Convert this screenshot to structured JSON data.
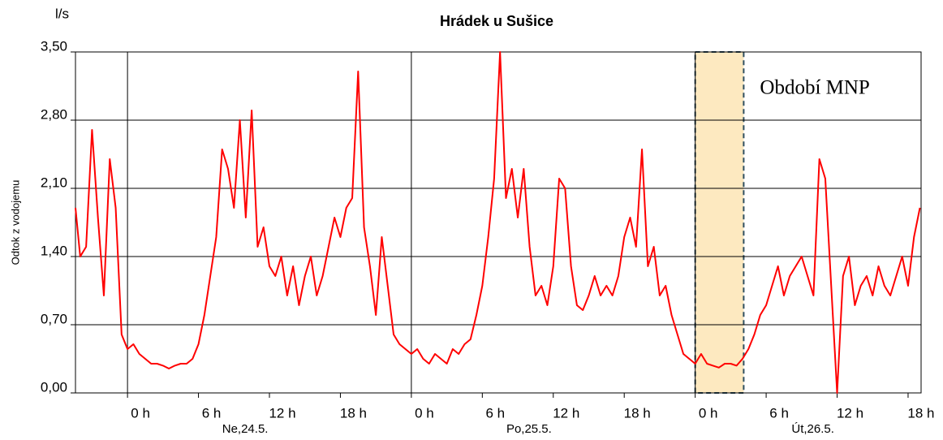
{
  "chart_data": {
    "type": "line",
    "title": "Hrádek u Sušice",
    "y_unit": "l/s",
    "y_label": "Odtok z vodojemu",
    "xlim": [
      -4.4,
      67.1
    ],
    "ylim": [
      0,
      3.5
    ],
    "yticks": [
      {
        "value": 0,
        "label": "0,00"
      },
      {
        "value": 0.7,
        "label": "0,70"
      },
      {
        "value": 1.4,
        "label": "1,40"
      },
      {
        "value": 2.1,
        "label": "2,10"
      },
      {
        "value": 2.8,
        "label": "2,80"
      },
      {
        "value": 3.5,
        "label": "3,50"
      }
    ],
    "xticks": [
      {
        "value": 0,
        "label": "0 h"
      },
      {
        "value": 6,
        "label": "6 h"
      },
      {
        "value": 12,
        "label": "12 h"
      },
      {
        "value": 18,
        "label": "18 h"
      },
      {
        "value": 24,
        "label": "0 h"
      },
      {
        "value": 30,
        "label": "6 h"
      },
      {
        "value": 36,
        "label": "12 h"
      },
      {
        "value": 42,
        "label": "18 h"
      },
      {
        "value": 48,
        "label": "0 h"
      },
      {
        "value": 54,
        "label": "6 h"
      },
      {
        "value": 60,
        "label": "12 h"
      },
      {
        "value": 66,
        "label": "18 h"
      }
    ],
    "day_labels": [
      "Ne,24.5.",
      "Po,25.5.",
      "Út,26.5."
    ],
    "day_lines": [
      0,
      24,
      48
    ],
    "grid": true,
    "highlight": {
      "x": [
        48,
        52.1
      ],
      "label": "Období MNP",
      "color": "#fde9c0",
      "border": "#2f4f5f"
    },
    "series": [
      {
        "color": "#ff0000",
        "x": [
          -4.4,
          -4,
          -3.5,
          -3,
          -2.5,
          -2,
          -1.5,
          -1,
          -0.5,
          0,
          0.5,
          1,
          1.5,
          2,
          2.5,
          3,
          3.5,
          4,
          4.5,
          5,
          5.5,
          6,
          6.5,
          7,
          7.5,
          8,
          8.5,
          9,
          9.5,
          10,
          10.5,
          11,
          11.5,
          12,
          12.5,
          13,
          13.5,
          14,
          14.5,
          15,
          15.5,
          16,
          16.5,
          17,
          17.5,
          18,
          18.5,
          19,
          19.5,
          20,
          20.5,
          21,
          21.5,
          22,
          22.5,
          23,
          23.5,
          24,
          24.5,
          25,
          25.5,
          26,
          26.5,
          27,
          27.5,
          28,
          28.5,
          29,
          29.5,
          30,
          30.5,
          31,
          31.5,
          32,
          32.5,
          33,
          33.5,
          34,
          34.5,
          35,
          35.5,
          36,
          36.5,
          37,
          37.5,
          38,
          38.5,
          39,
          39.5,
          40,
          40.5,
          41,
          41.5,
          42,
          42.5,
          43,
          43.5,
          44,
          44.5,
          45,
          45.5,
          46,
          46.5,
          47,
          47.5,
          48,
          48.5,
          49,
          49.5,
          50,
          50.5,
          51,
          51.5,
          52,
          52.5,
          53,
          53.5,
          54,
          54.5,
          55,
          55.5,
          56,
          56.5,
          57,
          57.5,
          58,
          58.5,
          59,
          59.5,
          60,
          60.5,
          61,
          61.5,
          62,
          62.5,
          63,
          63.5,
          64,
          64.5,
          65,
          65.5,
          66,
          66.5,
          67
        ],
        "values": [
          1.9,
          1.4,
          1.5,
          2.7,
          1.8,
          1.0,
          2.4,
          1.9,
          0.6,
          0.45,
          0.5,
          0.4,
          0.35,
          0.3,
          0.3,
          0.28,
          0.25,
          0.28,
          0.3,
          0.3,
          0.35,
          0.5,
          0.8,
          1.2,
          1.6,
          2.5,
          2.3,
          1.9,
          2.8,
          1.8,
          2.9,
          1.5,
          1.7,
          1.3,
          1.2,
          1.4,
          1.0,
          1.3,
          0.9,
          1.2,
          1.4,
          1.0,
          1.2,
          1.5,
          1.8,
          1.6,
          1.9,
          2.0,
          3.3,
          1.7,
          1.3,
          0.8,
          1.6,
          1.1,
          0.6,
          0.5,
          0.45,
          0.4,
          0.45,
          0.35,
          0.3,
          0.4,
          0.35,
          0.3,
          0.45,
          0.4,
          0.5,
          0.55,
          0.8,
          1.1,
          1.6,
          2.2,
          3.5,
          2.0,
          2.3,
          1.8,
          2.3,
          1.5,
          1.0,
          1.1,
          0.9,
          1.3,
          2.2,
          2.1,
          1.3,
          0.9,
          0.85,
          1.0,
          1.2,
          1.0,
          1.1,
          1.0,
          1.2,
          1.6,
          1.8,
          1.5,
          2.5,
          1.3,
          1.5,
          1.0,
          1.1,
          0.8,
          0.6,
          0.4,
          0.35,
          0.3,
          0.4,
          0.3,
          0.28,
          0.26,
          0.3,
          0.3,
          0.28,
          0.35,
          0.45,
          0.6,
          0.8,
          0.9,
          1.1,
          1.3,
          1.0,
          1.2,
          1.3,
          1.4,
          1.2,
          1.0,
          2.4,
          2.2,
          1.1,
          0.0,
          1.2,
          1.4,
          0.9,
          1.1,
          1.2,
          1.0,
          1.3,
          1.1,
          1.0,
          1.2,
          1.4,
          1.1,
          1.6,
          1.9
        ]
      }
    ]
  }
}
